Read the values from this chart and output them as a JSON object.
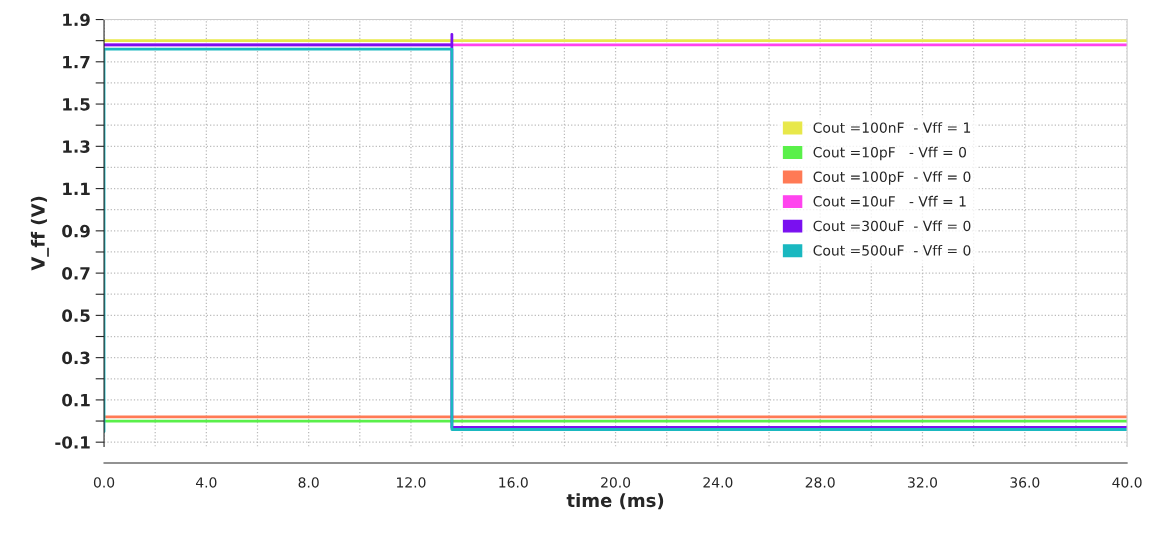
{
  "chart_data": {
    "type": "line",
    "xlabel": "time (ms)",
    "ylabel": "V_ff (V)",
    "xlim": [
      0,
      40
    ],
    "ylim": [
      -0.12,
      1.9
    ],
    "xticks": [
      {
        "value": 0,
        "label": "0.0"
      },
      {
        "value": 2,
        "label": null
      },
      {
        "value": 4,
        "label": "4.0"
      },
      {
        "value": 6,
        "label": null
      },
      {
        "value": 8,
        "label": "8.0"
      },
      {
        "value": 10,
        "label": null
      },
      {
        "value": 12,
        "label": "12.0"
      },
      {
        "value": 14,
        "label": null
      },
      {
        "value": 16,
        "label": "16.0"
      },
      {
        "value": 18,
        "label": null
      },
      {
        "value": 20,
        "label": "20.0"
      },
      {
        "value": 22,
        "label": null
      },
      {
        "value": 24,
        "label": "24.0"
      },
      {
        "value": 26,
        "label": null
      },
      {
        "value": 28,
        "label": "28.0"
      },
      {
        "value": 30,
        "label": null
      },
      {
        "value": 32,
        "label": "32.0"
      },
      {
        "value": 34,
        "label": null
      },
      {
        "value": 36,
        "label": "36.0"
      },
      {
        "value": 38,
        "label": null
      },
      {
        "value": 40,
        "label": "40.0"
      }
    ],
    "yticks": [
      -0.1,
      {
        "value": 0,
        "label": null
      },
      0.1,
      {
        "value": 0.2,
        "label": null
      },
      0.3,
      {
        "value": 0.4,
        "label": null
      },
      0.5,
      {
        "value": 0.6,
        "label": null
      },
      0.7,
      {
        "value": 0.8,
        "label": null
      },
      0.9,
      {
        "value": 1.0,
        "label": null
      },
      1.1,
      {
        "value": 1.2,
        "label": null
      },
      1.3,
      {
        "value": 1.4,
        "label": null
      },
      1.5,
      {
        "value": 1.6,
        "label": null
      },
      1.7,
      {
        "value": 1.8,
        "label": null
      },
      1.9
    ],
    "grid": true,
    "legend": "right",
    "line_style": "solid",
    "marker": "none",
    "series": [
      {
        "name": "Cout =100nF  - Vff = 1",
        "color": "#e8e84a",
        "x": [
          0,
          40
        ],
        "values": [
          1.8,
          1.8
        ]
      },
      {
        "name": "Cout =10pF   - Vff = 0",
        "color": "#5af04a",
        "x": [
          0,
          40
        ],
        "values": [
          0.0,
          0.0
        ]
      },
      {
        "name": "Cout =100pF  - Vff = 0",
        "color": "#ff7a55",
        "x": [
          0,
          40
        ],
        "values": [
          0.02,
          0.02
        ]
      },
      {
        "name": "Cout =10uF   - Vff = 1",
        "color": "#ff44ee",
        "x": [
          0,
          40
        ],
        "values": [
          1.78,
          1.78
        ]
      },
      {
        "name": "Cout =300uF  - Vff = 0",
        "color": "#7a10f0",
        "x": [
          0,
          13.6,
          13.6,
          13.6,
          40
        ],
        "values": [
          1.78,
          1.78,
          1.83,
          -0.03,
          -0.03
        ]
      },
      {
        "name": "Cout =500uF  - Vff = 0",
        "color": "#1ab8c0",
        "x": [
          0,
          0,
          13.6,
          13.6,
          40
        ],
        "values": [
          -0.05,
          1.76,
          1.76,
          -0.04,
          -0.04
        ]
      }
    ]
  }
}
